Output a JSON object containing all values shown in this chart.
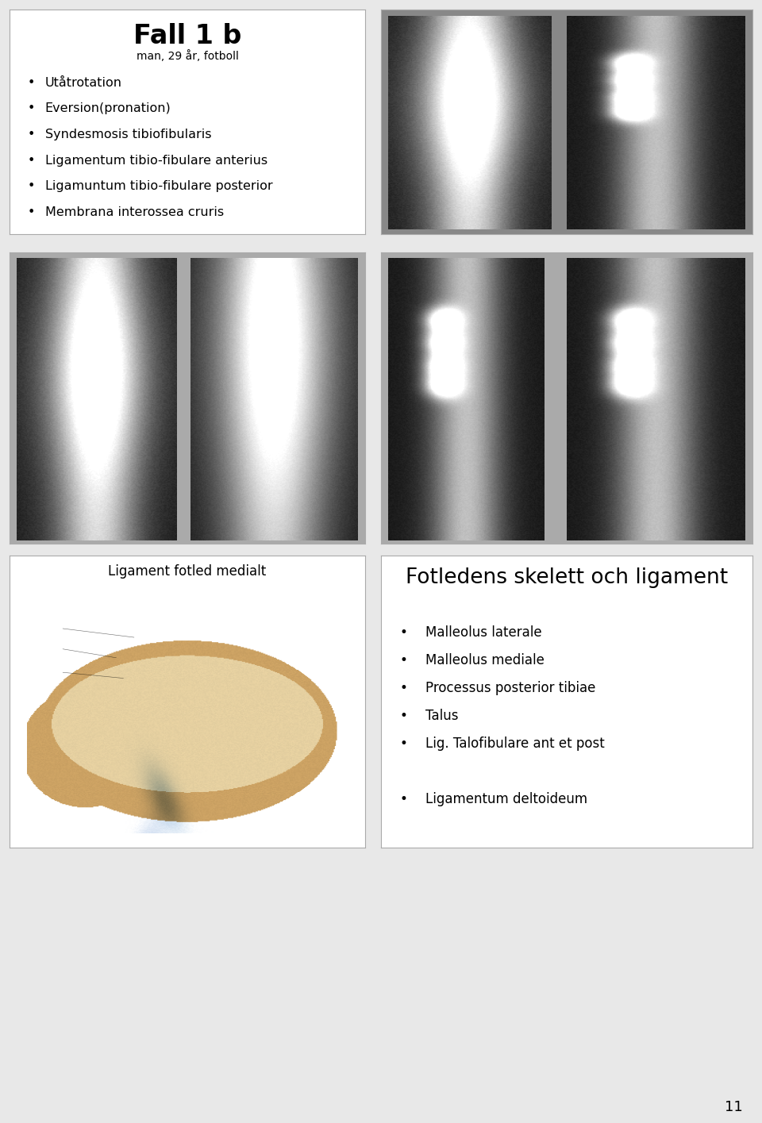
{
  "bg_color": "#e8e8e8",
  "slide_bg": "#ffffff",
  "border_color": "#aaaaaa",
  "title": "Fall 1 b",
  "subtitle": "man, 29 år, fotboll",
  "bullets_panel1": [
    "Utåtrotation",
    "Eversion(pronation)",
    "Syndesmosis tibiofibularis",
    "Ligamentum tibio-fibulare anterius",
    "Ligamuntum tibio-fibulare posterior",
    "Membrana interossea cruris"
  ],
  "panel3_title": "Ligament fotled medialt",
  "panel4_title": "Fotledens skelett och ligament",
  "panel4_bullets": [
    "Malleolus laterale",
    "Malleolus mediale",
    "Processus posterior tibiae",
    "Talus",
    "Lig. Talofibulare ant et post",
    "",
    "Ligamentum deltoideum"
  ],
  "page_number": "11",
  "title_fontsize": 24,
  "subtitle_fontsize": 10,
  "bullet_fontsize": 11.5,
  "panel3_title_fontsize": 12,
  "panel4_title_fontsize": 19,
  "panel4_bullet_fontsize": 12
}
